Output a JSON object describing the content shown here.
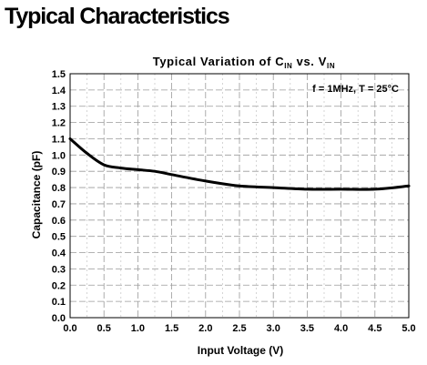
{
  "page": {
    "heading": "Typical Characteristics"
  },
  "chart_data": {
    "type": "line",
    "title": {
      "parts": [
        {
          "text": "Typical Variation of C",
          "sub": false
        },
        {
          "text": "IN",
          "sub": true
        },
        {
          "text": " vs. V",
          "sub": false
        },
        {
          "text": "IN",
          "sub": true
        }
      ]
    },
    "annotation": "f = 1MHz, T = 25°C",
    "xlabel": "Input Voltage (V)",
    "ylabel": "Capacitance (pF)",
    "xlim": [
      0,
      5
    ],
    "ylim": [
      0,
      1.5
    ],
    "x_ticks": [
      "0.0",
      "0.5",
      "1.0",
      "1.5",
      "2.0",
      "2.5",
      "3.0",
      "3.5",
      "4.0",
      "4.5",
      "5.0"
    ],
    "y_ticks": [
      "0.0",
      "0.1",
      "0.2",
      "0.3",
      "0.4",
      "0.5",
      "0.6",
      "0.7",
      "0.8",
      "0.9",
      "1.0",
      "1.1",
      "1.2",
      "1.3",
      "1.4",
      "1.5"
    ],
    "grid": true,
    "series": [
      {
        "color": "#000000",
        "x": [
          0.0,
          0.25,
          0.5,
          0.75,
          1.0,
          1.25,
          1.5,
          2.0,
          2.5,
          3.0,
          3.5,
          4.0,
          4.5,
          5.0
        ],
        "y": [
          1.1,
          1.01,
          0.94,
          0.92,
          0.91,
          0.9,
          0.88,
          0.84,
          0.81,
          0.8,
          0.79,
          0.79,
          0.79,
          0.81
        ]
      }
    ]
  }
}
